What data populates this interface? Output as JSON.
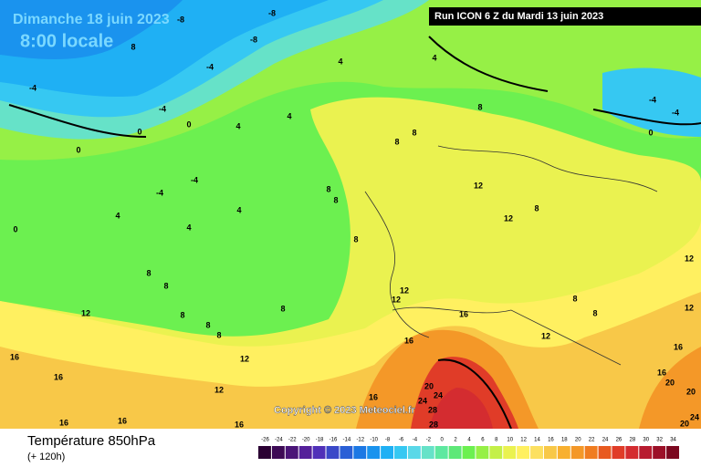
{
  "header": {
    "date": "Dimanche 18 juin 2023",
    "time": "8:00 locale",
    "run": "Run ICON 6 Z du Mardi 13 juin 2023"
  },
  "copyright": "Copyright © 2023 Meteociel.fr",
  "footer": {
    "variable": "Température 850hPa",
    "lead": "(+ 120h)"
  },
  "scale": {
    "labels": [
      -26,
      -24,
      -22,
      -20,
      -18,
      -16,
      -14,
      -12,
      -10,
      -8,
      -6,
      -4,
      -2,
      0,
      2,
      4,
      6,
      8,
      10,
      12,
      14,
      16,
      18,
      20,
      22,
      24,
      26,
      28,
      30,
      32,
      34
    ],
    "colors": [
      "#2b0033",
      "#3d0a55",
      "#4a1477",
      "#55209a",
      "#5030b8",
      "#3a48c8",
      "#2a5fd6",
      "#1c78e4",
      "#1a93ee",
      "#1fb0f4",
      "#36c8f2",
      "#5ad8e8",
      "#66e2c8",
      "#5ee8a0",
      "#5ee878",
      "#6cf050",
      "#96f046",
      "#c4f048",
      "#eaf250",
      "#fff060",
      "#fce060",
      "#f8c848",
      "#f8b030",
      "#f49828",
      "#f07c20",
      "#e85a20",
      "#e03c28",
      "#d42c30",
      "#b81c30",
      "#9c1028",
      "#7c0820"
    ]
  },
  "isotherm_labels": [
    -8,
    -8,
    8,
    -8,
    -4,
    4,
    4,
    -4,
    -4,
    0,
    4,
    0,
    4,
    8,
    8,
    8,
    0,
    -4,
    -4,
    4,
    4,
    4,
    8,
    8,
    0,
    8,
    12,
    12,
    8,
    8,
    8,
    12,
    8,
    8,
    8,
    8,
    12,
    12,
    16,
    16,
    12,
    8,
    8,
    12,
    12,
    16,
    16,
    12,
    16,
    12,
    16,
    16,
    16,
    16,
    20,
    24,
    24,
    28,
    28,
    16,
    20,
    20,
    24,
    20,
    -4,
    0,
    -4
  ]
}
